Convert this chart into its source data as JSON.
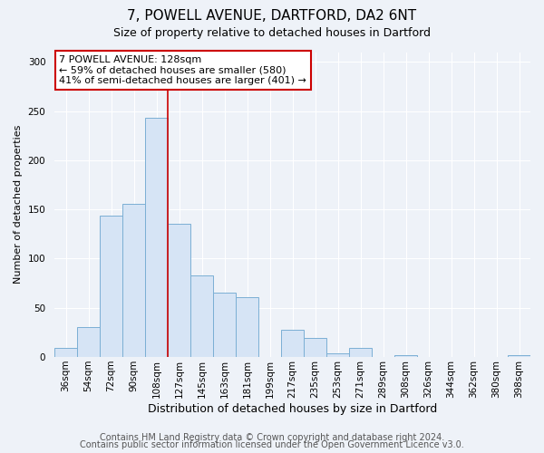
{
  "title": "7, POWELL AVENUE, DARTFORD, DA2 6NT",
  "subtitle": "Size of property relative to detached houses in Dartford",
  "xlabel": "Distribution of detached houses by size in Dartford",
  "ylabel": "Number of detached properties",
  "bar_labels": [
    "36sqm",
    "54sqm",
    "72sqm",
    "90sqm",
    "108sqm",
    "127sqm",
    "145sqm",
    "163sqm",
    "181sqm",
    "199sqm",
    "217sqm",
    "235sqm",
    "253sqm",
    "271sqm",
    "289sqm",
    "308sqm",
    "326sqm",
    "344sqm",
    "362sqm",
    "380sqm",
    "398sqm"
  ],
  "bar_heights": [
    9,
    30,
    144,
    156,
    243,
    135,
    83,
    65,
    61,
    0,
    28,
    19,
    4,
    9,
    0,
    2,
    0,
    0,
    0,
    0,
    2
  ],
  "bar_color": "#d6e4f5",
  "bar_edge_color": "#7bafd4",
  "vline_color": "#cc0000",
  "annotation_title": "7 POWELL AVENUE: 128sqm",
  "annotation_line1": "← 59% of detached houses are smaller (580)",
  "annotation_line2": "41% of semi-detached houses are larger (401) →",
  "annotation_box_color": "#ffffff",
  "annotation_box_edge": "#cc0000",
  "ylim": [
    0,
    310
  ],
  "footer1": "Contains HM Land Registry data © Crown copyright and database right 2024.",
  "footer2": "Contains public sector information licensed under the Open Government Licence v3.0.",
  "bg_color": "#eef2f8",
  "plot_bg_color": "#eef2f8",
  "grid_color": "#ffffff",
  "title_fontsize": 11,
  "subtitle_fontsize": 9,
  "xlabel_fontsize": 9,
  "ylabel_fontsize": 8,
  "tick_fontsize": 7.5,
  "footer_fontsize": 7
}
